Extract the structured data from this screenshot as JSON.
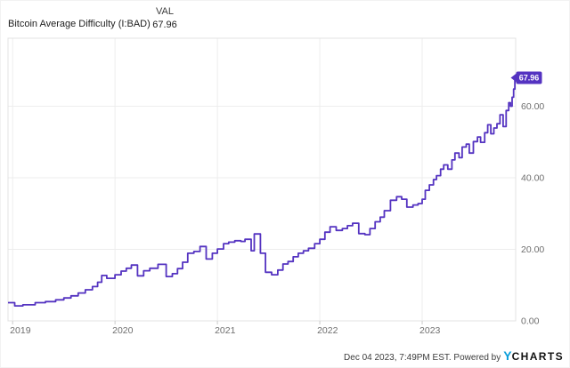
{
  "header": {
    "title": "Bitcoin Average Difficulty (I:BAD)",
    "col_label": "VAL",
    "value": "67.96"
  },
  "footer": {
    "timestamp": "Dec 04 2023, 7:49PM EST. Powered by",
    "logo_y": "Y",
    "logo_charts": "CHARTS"
  },
  "colors": {
    "line": "#5433c1",
    "badge": "#5433c1",
    "badge_text": "#ffffff",
    "grid": "#ededed",
    "plot_border": "#e3e3e3",
    "tick": "#cccccc",
    "axis_text": "#6e6e6e",
    "logo_blue": "#0a9eda"
  },
  "chart_data": {
    "type": "line",
    "step": true,
    "title": "Bitcoin Average Difficulty (I:BAD)",
    "ylabel": "",
    "xlabel": "",
    "grid": true,
    "legend_position": "none",
    "xlim": [
      2018.955,
      2023.913
    ],
    "ylim": [
      0,
      79
    ],
    "badge_label": "67.96",
    "x_ticks": [
      {
        "label": "2019",
        "year": 2019
      },
      {
        "label": "2020",
        "year": 2020
      },
      {
        "label": "2021",
        "year": 2021
      },
      {
        "label": "2022",
        "year": 2022
      },
      {
        "label": "2023",
        "year": 2023
      }
    ],
    "y_ticks": [
      {
        "label": "0.00",
        "value": 0
      },
      {
        "label": "20.00",
        "value": 20
      },
      {
        "label": "40.00",
        "value": 40
      },
      {
        "label": "60.00",
        "value": 60
      }
    ],
    "series": [
      {
        "name": "Bitcoin Average Difficulty (I:BAD)",
        "last_value": 67.96,
        "points": [
          [
            2018.955,
            5.1
          ],
          [
            2019.02,
            4.2
          ],
          [
            2019.1,
            4.5
          ],
          [
            2019.22,
            5.1
          ],
          [
            2019.32,
            5.4
          ],
          [
            2019.42,
            5.9
          ],
          [
            2019.5,
            6.4
          ],
          [
            2019.57,
            7.0
          ],
          [
            2019.64,
            7.8
          ],
          [
            2019.71,
            8.7
          ],
          [
            2019.78,
            9.6
          ],
          [
            2019.83,
            10.8
          ],
          [
            2019.87,
            12.7
          ],
          [
            2019.92,
            11.9
          ],
          [
            2020.0,
            12.9
          ],
          [
            2020.06,
            13.9
          ],
          [
            2020.11,
            14.7
          ],
          [
            2020.16,
            15.6
          ],
          [
            2020.22,
            12.6
          ],
          [
            2020.28,
            14.0
          ],
          [
            2020.34,
            14.7
          ],
          [
            2020.42,
            15.8
          ],
          [
            2020.5,
            12.4
          ],
          [
            2020.56,
            13.2
          ],
          [
            2020.61,
            14.6
          ],
          [
            2020.66,
            16.4
          ],
          [
            2020.71,
            18.9
          ],
          [
            2020.77,
            19.4
          ],
          [
            2020.83,
            20.8
          ],
          [
            2020.89,
            17.3
          ],
          [
            2020.95,
            18.9
          ],
          [
            2021.0,
            20.1
          ],
          [
            2021.06,
            21.6
          ],
          [
            2021.11,
            22.0
          ],
          [
            2021.17,
            22.4
          ],
          [
            2021.23,
            22.2
          ],
          [
            2021.27,
            22.8
          ],
          [
            2021.33,
            19.6
          ],
          [
            2021.36,
            24.3
          ],
          [
            2021.42,
            18.9
          ],
          [
            2021.47,
            13.6
          ],
          [
            2021.53,
            12.9
          ],
          [
            2021.59,
            14.2
          ],
          [
            2021.64,
            15.9
          ],
          [
            2021.69,
            16.6
          ],
          [
            2021.74,
            17.9
          ],
          [
            2021.79,
            18.9
          ],
          [
            2021.84,
            19.6
          ],
          [
            2021.89,
            20.3
          ],
          [
            2021.95,
            21.6
          ],
          [
            2022.0,
            22.8
          ],
          [
            2022.05,
            24.8
          ],
          [
            2022.1,
            26.3
          ],
          [
            2022.16,
            25.3
          ],
          [
            2022.22,
            25.8
          ],
          [
            2022.27,
            26.6
          ],
          [
            2022.32,
            27.3
          ],
          [
            2022.38,
            24.4
          ],
          [
            2022.44,
            24.1
          ],
          [
            2022.49,
            25.8
          ],
          [
            2022.54,
            27.7
          ],
          [
            2022.59,
            29.0
          ],
          [
            2022.63,
            30.8
          ],
          [
            2022.69,
            33.7
          ],
          [
            2022.75,
            34.7
          ],
          [
            2022.8,
            34.0
          ],
          [
            2022.85,
            31.8
          ],
          [
            2022.91,
            32.4
          ],
          [
            2022.96,
            32.8
          ],
          [
            2023.0,
            34.0
          ],
          [
            2023.03,
            36.5
          ],
          [
            2023.07,
            38.0
          ],
          [
            2023.11,
            39.5
          ],
          [
            2023.14,
            40.6
          ],
          [
            2023.18,
            42.4
          ],
          [
            2023.21,
            43.6
          ],
          [
            2023.25,
            42.4
          ],
          [
            2023.29,
            45.0
          ],
          [
            2023.32,
            46.9
          ],
          [
            2023.36,
            45.6
          ],
          [
            2023.39,
            48.6
          ],
          [
            2023.43,
            49.4
          ],
          [
            2023.46,
            46.9
          ],
          [
            2023.5,
            50.1
          ],
          [
            2023.54,
            51.4
          ],
          [
            2023.57,
            49.9
          ],
          [
            2023.61,
            52.6
          ],
          [
            2023.64,
            54.8
          ],
          [
            2023.67,
            52.3
          ],
          [
            2023.7,
            53.9
          ],
          [
            2023.73,
            55.1
          ],
          [
            2023.76,
            57.6
          ],
          [
            2023.79,
            54.3
          ],
          [
            2023.82,
            58.8
          ],
          [
            2023.845,
            61.0
          ],
          [
            2023.862,
            60.0
          ],
          [
            2023.878,
            62.5
          ],
          [
            2023.893,
            64.8
          ],
          [
            2023.905,
            67.96
          ]
        ]
      }
    ]
  }
}
